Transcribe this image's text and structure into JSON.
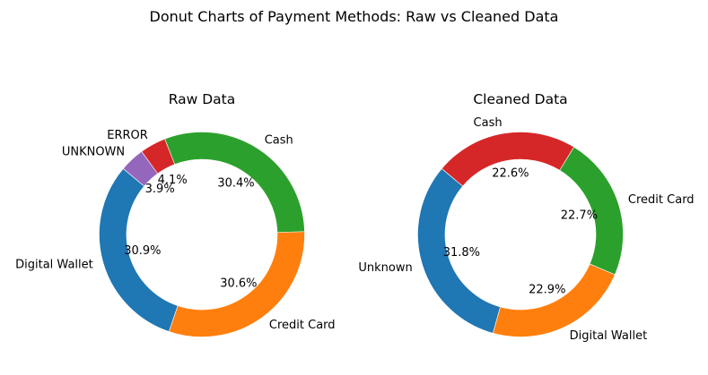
{
  "figure": {
    "suptitle": "Donut Charts of Payment Methods: Raw vs Cleaned Data"
  },
  "chart_data": [
    {
      "type": "pie",
      "variant": "donut",
      "title": "Raw Data",
      "labels": [
        "Digital Wallet",
        "Credit Card",
        "Cash",
        "ERROR",
        "UNKNOWN"
      ],
      "values": [
        30.9,
        30.6,
        30.4,
        4.1,
        3.9
      ],
      "value_labels": [
        "30.9%",
        "30.6%",
        "30.4%",
        "4.1%",
        "3.9%"
      ],
      "colors": [
        "#1f77b4",
        "#ff7f0e",
        "#2ca02c",
        "#d62728",
        "#9467bd"
      ]
    },
    {
      "type": "pie",
      "variant": "donut",
      "title": "Cleaned Data",
      "labels": [
        "Unknown",
        "Digital Wallet",
        "Credit Card",
        "Cash"
      ],
      "values": [
        31.8,
        22.9,
        22.7,
        22.6
      ],
      "value_labels": [
        "31.8%",
        "22.9%",
        "22.7%",
        "22.6%"
      ],
      "colors": [
        "#1f77b4",
        "#ff7f0e",
        "#2ca02c",
        "#d62728"
      ]
    }
  ]
}
